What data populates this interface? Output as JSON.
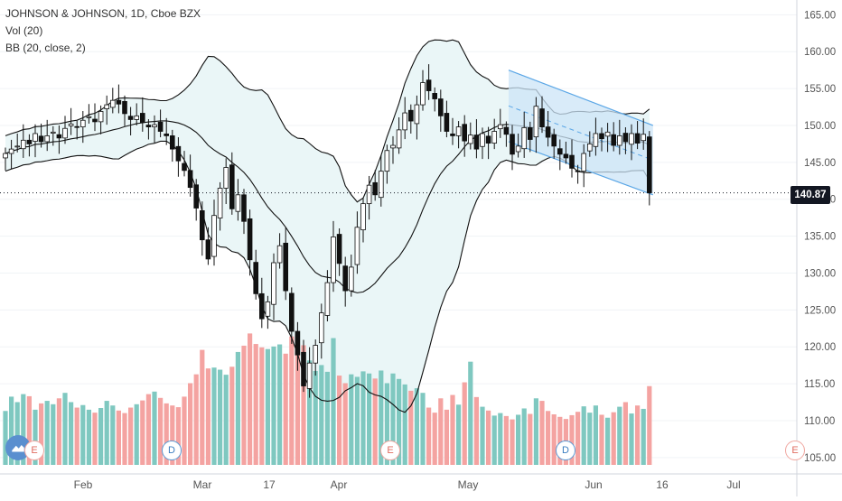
{
  "legend": {
    "title": "JOHNSON & JOHNSON, 1D, Cboe BZX",
    "volume": "Vol (20)",
    "bb": "BB (20, close, 2)"
  },
  "last_price": "140.87",
  "colors": {
    "up": "#26a69a",
    "down": "#ef5350",
    "vol_up": "#7fc8c0",
    "vol_down": "#f4a3a1",
    "bb_fill": "#eaf6f7",
    "channel_fill": "#cce4f7",
    "channel_line": "#5aa6e6",
    "axis_text": "#555555",
    "grid": "#f0f3f6"
  },
  "markers": [
    {
      "type": "earnings",
      "label": "E",
      "date": "2020-01-22"
    },
    {
      "type": "dividend",
      "label": "D",
      "date": "2020-02-21"
    },
    {
      "type": "earnings",
      "label": "E",
      "date": "2020-04-14"
    },
    {
      "type": "dividend",
      "label": "D",
      "date": "2020-05-22"
    },
    {
      "type": "earnings",
      "label": "E",
      "date": "2020-07-16"
    }
  ],
  "icons": {
    "logo": "tradingview-cloud-icon"
  },
  "chart_data": {
    "type": "candlestick",
    "x_ticks": [
      "Feb",
      "Mar",
      "17",
      "Apr",
      "May",
      "Jun",
      "16",
      "Jul"
    ],
    "y_ticks": [
      "105.00",
      "110.00",
      "115.00",
      "120.00",
      "125.00",
      "130.00",
      "135.00",
      "140.00",
      "145.00",
      "150.00",
      "155.00",
      "160.00",
      "165.00"
    ],
    "ylim": [
      104,
      167
    ],
    "series": [
      {
        "name": "price",
        "closes": [
          146.2,
          146.8,
          147.2,
          148.0,
          147.5,
          148.9,
          147.8,
          148.6,
          149.1,
          148.3,
          149.6,
          150.2,
          149.8,
          150.7,
          151.2,
          150.5,
          151.9,
          152.8,
          153.4,
          152.9,
          151.6,
          150.8,
          151.3,
          150.4,
          149.8,
          150.1,
          149.2,
          148.6,
          146.8,
          145.2,
          143.9,
          141.6,
          138.8,
          134.5,
          131.9,
          137.8,
          141.5,
          144.3,
          138.7,
          140.6,
          137.0,
          131.8,
          127.2,
          123.8,
          126.1,
          131.4,
          133.7,
          127.6,
          122.1,
          118.9,
          114.7,
          117.8,
          120.2,
          124.6,
          128.7,
          134.9,
          131.3,
          127.6,
          130.8,
          136.2,
          139.4,
          141.9,
          140.6,
          143.8,
          146.6,
          147.3,
          149.4,
          151.7,
          150.6,
          152.8,
          155.8,
          154.7,
          153.6,
          151.3,
          149.2,
          148.6,
          149.8,
          147.9,
          148.7,
          146.8,
          148.9,
          147.6,
          149.2,
          150.1,
          148.8,
          146.1,
          147.2,
          149.7,
          148.1,
          152.6,
          149.8,
          148.4,
          147.2,
          146.1,
          145.6,
          144.2,
          143.8,
          146.2,
          147.5,
          148.9,
          148.2,
          149.1,
          147.3,
          148.6,
          147.8,
          148.9,
          147.6,
          148.8,
          140.87
        ]
      },
      {
        "name": "volume",
        "values": [
          12.8,
          16.2,
          14.9,
          16.8,
          16.3,
          13.1,
          14.6,
          15.2,
          14.4,
          15.8,
          17.1,
          14.9,
          13.6,
          14.2,
          13.1,
          12.4,
          13.5,
          15.2,
          14.1,
          12.9,
          12.3,
          13.6,
          14.4,
          15.3,
          16.8,
          17.4,
          15.9,
          14.6,
          14.1,
          13.7,
          16.2,
          19.4,
          21.5,
          27.3,
          22.9,
          23.1,
          22.6,
          21.4,
          23.3,
          26.8,
          28.3,
          31.2,
          28.7,
          27.9,
          27.5,
          28.1,
          28.6,
          26.4,
          30.5,
          31.1,
          28.4,
          24.8,
          22.3,
          23.7,
          22.1,
          30.1,
          21.2,
          19.4,
          21.5,
          20.9,
          22.2,
          21.7,
          20.5,
          22.4,
          19.4,
          21.7,
          20.4,
          19.1,
          17.6,
          18.2,
          17.1,
          13.6,
          12.4,
          15.8,
          13.1,
          16.6,
          14.3,
          19.6,
          24.5,
          16.1,
          13.8,
          12.9,
          11.7,
          12.3,
          11.6,
          10.8,
          11.9,
          13.4,
          12.1,
          15.8,
          15.2,
          12.8,
          12.0,
          11.4,
          10.9,
          11.8,
          12.6,
          13.9,
          12.4,
          14.1,
          11.9,
          11.2,
          12.5,
          13.8,
          14.9,
          12.2,
          14.1,
          13.3,
          18.7
        ]
      },
      {
        "name": "bb_upper",
        "values": []
      },
      {
        "name": "bb_basis",
        "values": []
      },
      {
        "name": "bb_lower",
        "values": []
      }
    ],
    "channel": {
      "start": {
        "index": 85,
        "upper": 157.5,
        "lower": 147.8
      },
      "end": {
        "index": 125,
        "upper": 150.0,
        "lower": 140.6
      }
    }
  }
}
